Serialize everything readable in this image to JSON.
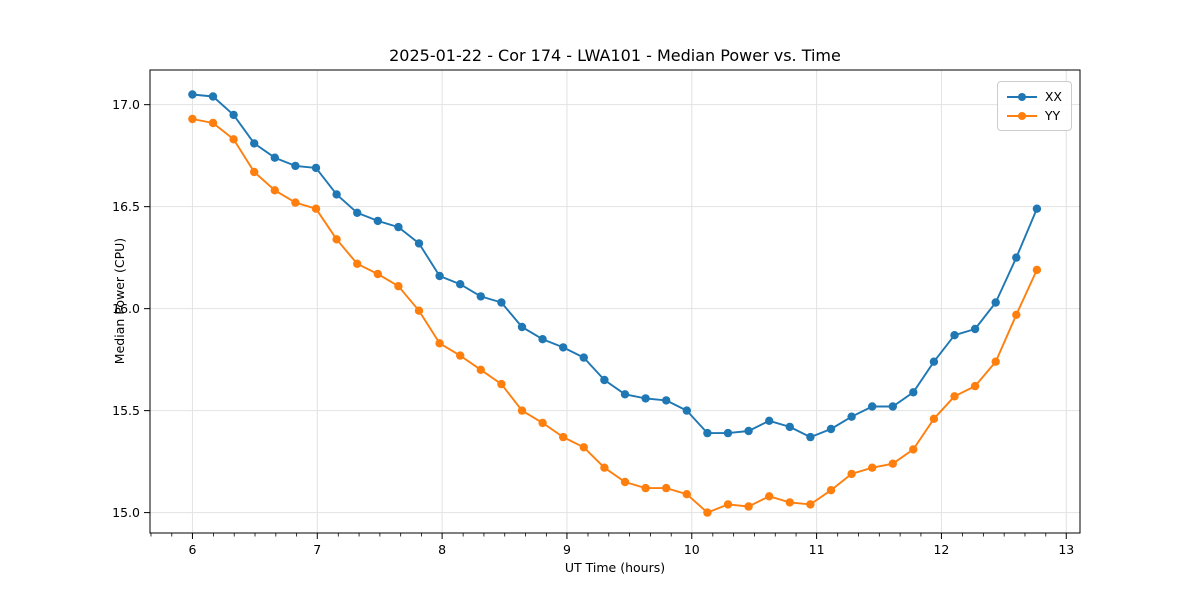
{
  "chart_data": {
    "type": "line",
    "title": "2025-01-22 - Cor 174 - LWA101 - Median Power vs. Time",
    "xlabel": "UT Time (hours)",
    "ylabel": "Median Power (CPU)",
    "x": [
      6.0,
      6.165,
      6.33,
      6.495,
      6.66,
      6.825,
      6.99,
      7.155,
      7.32,
      7.485,
      7.65,
      7.815,
      7.98,
      8.145,
      8.31,
      8.475,
      8.64,
      8.805,
      8.97,
      9.135,
      9.3,
      9.465,
      9.63,
      9.795,
      9.96,
      10.125,
      10.29,
      10.455,
      10.62,
      10.785,
      10.95,
      11.115,
      11.28,
      11.445,
      11.61,
      11.775,
      11.94,
      12.105,
      12.27,
      12.435,
      12.6,
      12.765
    ],
    "series": [
      {
        "name": "XX",
        "color": "#1f77b4",
        "values": [
          17.05,
          17.04,
          16.95,
          16.81,
          16.74,
          16.7,
          16.69,
          16.56,
          16.47,
          16.43,
          16.4,
          16.32,
          16.16,
          16.12,
          16.06,
          16.03,
          15.91,
          15.85,
          15.81,
          15.76,
          15.65,
          15.58,
          15.56,
          15.55,
          15.5,
          15.39,
          15.39,
          15.4,
          15.45,
          15.42,
          15.37,
          15.41,
          15.47,
          15.52,
          15.52,
          15.59,
          15.74,
          15.87,
          15.9,
          16.03,
          16.25,
          16.49
        ]
      },
      {
        "name": "YY",
        "color": "#ff7f0e",
        "values": [
          16.93,
          16.91,
          16.83,
          16.67,
          16.58,
          16.52,
          16.49,
          16.34,
          16.22,
          16.17,
          16.11,
          15.99,
          15.83,
          15.77,
          15.7,
          15.63,
          15.5,
          15.44,
          15.37,
          15.32,
          15.22,
          15.15,
          15.12,
          15.12,
          15.09,
          15.0,
          15.04,
          15.03,
          15.08,
          15.05,
          15.04,
          15.11,
          15.19,
          15.22,
          15.24,
          15.31,
          15.46,
          15.57,
          15.62,
          15.74,
          15.97,
          16.19
        ]
      }
    ],
    "xlim": [
      5.66,
      13.11
    ],
    "ylim": [
      14.9,
      17.17
    ],
    "xticks": [
      6,
      7,
      8,
      9,
      10,
      11,
      12,
      13
    ],
    "yticks": [
      15.0,
      15.5,
      16.0,
      16.5,
      17.0
    ],
    "x_minor_step": 0.1667,
    "grid": true,
    "grid_color": "#e2e2e2",
    "legend_position": "upper right"
  }
}
